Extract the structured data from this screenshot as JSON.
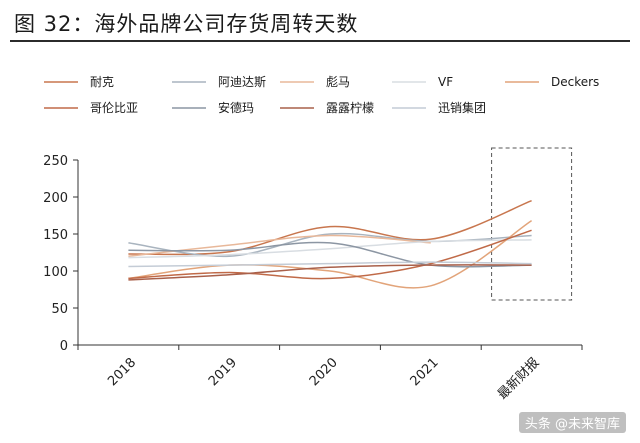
{
  "title": "图 32：海外品牌公司存货周转天数",
  "watermark": "头条 @未来智库",
  "chart_data": {
    "type": "line",
    "categories": [
      "2018",
      "2019",
      "2020",
      "2021",
      "最新财报"
    ],
    "ylim": [
      0,
      250
    ],
    "yticks": [
      0,
      50,
      100,
      150,
      200,
      250
    ],
    "grid": false,
    "highlight_category": "最新财报",
    "series": [
      {
        "name": "耐克",
        "color": "#c8764e",
        "values": [
          123,
          126,
          160,
          143,
          195
        ]
      },
      {
        "name": "阿迪达斯",
        "color": "#a9b4bf",
        "values": [
          138,
          120,
          150,
          140,
          148
        ]
      },
      {
        "name": "彪马",
        "color": "#e8b89a",
        "values": [
          120,
          135,
          148,
          138,
          null
        ]
      },
      {
        "name": "VF",
        "color": "#d8dde2",
        "values": [
          118,
          122,
          130,
          140,
          142
        ]
      },
      {
        "name": "Deckers",
        "color": "#e2a47a",
        "values": [
          90,
          108,
          100,
          80,
          168
        ]
      },
      {
        "name": "哥伦比亚",
        "color": "#c06a48",
        "values": [
          90,
          98,
          90,
          110,
          155
        ]
      },
      {
        "name": "安德玛",
        "color": "#8c96a3",
        "values": [
          128,
          128,
          138,
          108,
          108
        ]
      },
      {
        "name": "露露柠檬",
        "color": "#a9604a",
        "values": [
          88,
          95,
          105,
          108,
          108
        ]
      },
      {
        "name": "迅销集团",
        "color": "#c4ccd6",
        "values": [
          106,
          108,
          110,
          112,
          110
        ]
      }
    ]
  }
}
